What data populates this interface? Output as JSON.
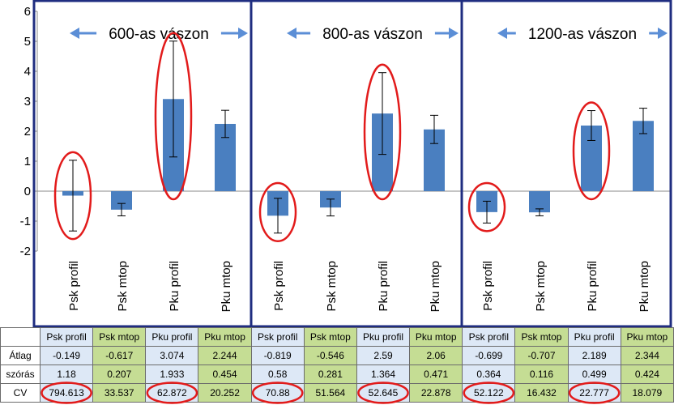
{
  "chart_data": {
    "type": "bar",
    "ylim": [
      -2,
      6
    ],
    "yticks": [
      "6",
      "5",
      "4",
      "3",
      "2",
      "1",
      "0",
      "-1",
      "-2"
    ],
    "panels": [
      {
        "title": "600-as vászon",
        "categories": [
          "Psk profil",
          "Psk mtop",
          "Pku profil",
          "Pku mtop"
        ],
        "values": [
          -0.149,
          -0.617,
          3.074,
          2.244
        ],
        "errors": [
          1.18,
          0.207,
          1.933,
          0.454
        ]
      },
      {
        "title": "800-as vászon",
        "categories": [
          "Psk profil",
          "Psk mtop",
          "Pku profil",
          "Pku mtop"
        ],
        "values": [
          -0.819,
          -0.546,
          2.59,
          2.06
        ],
        "errors": [
          0.58,
          0.281,
          1.364,
          0.471
        ]
      },
      {
        "title": "1200-as vászon",
        "categories": [
          "Psk profil",
          "Psk mtop",
          "Pku profil",
          "Pku mtop"
        ],
        "values": [
          -0.699,
          -0.707,
          2.189,
          2.344
        ],
        "errors": [
          0.364,
          0.116,
          0.499,
          0.424
        ]
      }
    ],
    "highlighted": [
      "Psk profil",
      "Pku profil"
    ],
    "colors": {
      "bar": "#4a7fc0",
      "frame": "#1f2d80",
      "ellipse": "#e21b1b",
      "arrow": "#5b8ed6"
    }
  },
  "table": {
    "columns": [
      "Psk profil",
      "Psk mtop",
      "Pku profil",
      "Pku mtop",
      "Psk profil",
      "Psk mtop",
      "Pku profil",
      "Pku mtop",
      "Psk profil",
      "Psk mtop",
      "Pku profil",
      "Pku mtop"
    ],
    "rows": [
      {
        "label": "Átlag",
        "cells": [
          "-0.149",
          "-0.617",
          "3.074",
          "2.244",
          "-0.819",
          "-0.546",
          "2.59",
          "2.06",
          "-0.699",
          "-0.707",
          "2.189",
          "2.344"
        ]
      },
      {
        "label": "szórás",
        "cells": [
          "1.18",
          "0.207",
          "1.933",
          "0.454",
          "0.58",
          "0.281",
          "1.364",
          "0.471",
          "0.364",
          "0.116",
          "0.499",
          "0.424"
        ]
      },
      {
        "label": "CV",
        "cells": [
          "794.613",
          "33.537",
          "62.872",
          "20.252",
          "70.88",
          "51.564",
          "52.645",
          "22.878",
          "52.122",
          "16.432",
          "22.777",
          "18.079"
        ]
      }
    ],
    "circled_cv": [
      0,
      2,
      4,
      6,
      8,
      10
    ]
  }
}
